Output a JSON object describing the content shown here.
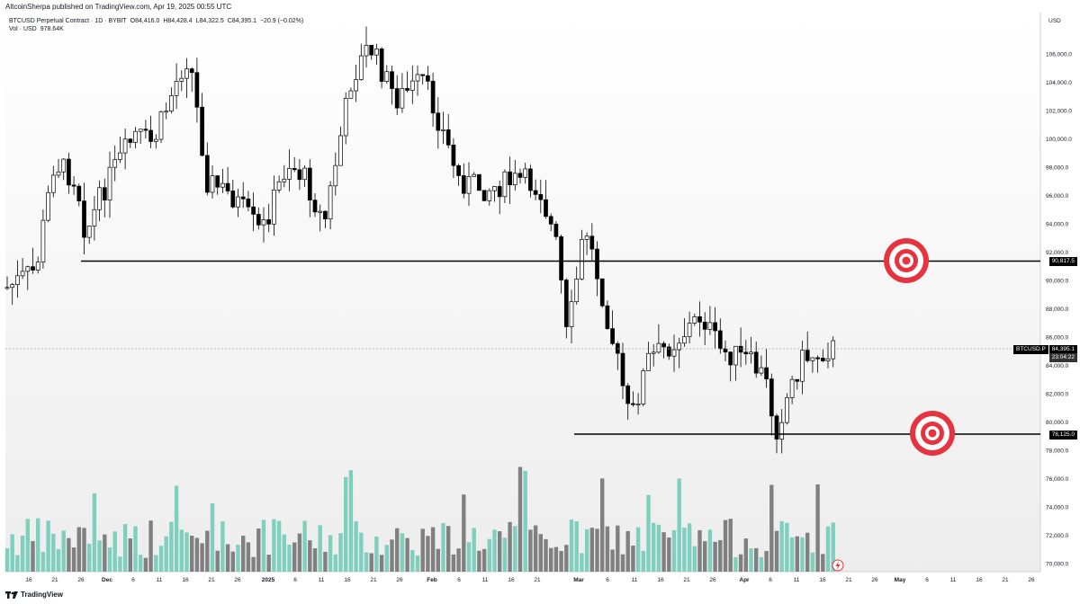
{
  "header": {
    "published": "AltcoinSherpa published on TradingView.com, Apr 19, 2025 00:55 UTC"
  },
  "legend": {
    "symbol": "BTCUSD Perpetual Contract · 1D · BYBIT",
    "open": "O84,416.0",
    "high": "H84,428.4",
    "low": "L84,322.5",
    "close": "C84,395.1",
    "change": "−20.9 (−0.02%)",
    "volume_label": "Vol · USD",
    "volume_value": "978.64K"
  },
  "price_axis": {
    "currency": "USD",
    "ticks": [
      "106,000.0",
      "104,000.0",
      "102,000.0",
      "100,000.0",
      "98,000.0",
      "96,000.0",
      "94,000.0",
      "92,000.0",
      "90,000.0",
      "88,000.0",
      "86,000.0",
      "84,000.0",
      "82,000.0",
      "80,000.0",
      "78,000.0",
      "76,000.0",
      "74,000.0",
      "72,000.0",
      "70,000.0"
    ]
  },
  "levels": {
    "upper": "90,817.5",
    "lower": "78,125.0"
  },
  "last_price": {
    "ticker": "BTCUSD.P",
    "value": "84,395.1",
    "countdown": "23:04:22"
  },
  "time_axis": {
    "labels": [
      "16",
      "21",
      "26",
      "Dec",
      "6",
      "11",
      "16",
      "21",
      "26",
      "2025",
      "6",
      "11",
      "16",
      "21",
      "26",
      "Feb",
      "6",
      "11",
      "16",
      "21",
      "Mar",
      "6",
      "11",
      "16",
      "21",
      "26",
      "Apr",
      "6",
      "11",
      "16",
      "21",
      "26",
      "May",
      "6",
      "11",
      "16",
      "21",
      "26"
    ]
  },
  "footer": {
    "brand": "TradingView"
  },
  "colors": {
    "up_volume": "#7fcfbf",
    "down_volume": "#808080",
    "target": "#e5333f",
    "candle_up": "#ffffff",
    "candle_down": "#000000"
  },
  "icons": [
    "target-icon",
    "lightning-icon",
    "tradingview-logo-icon"
  ]
}
